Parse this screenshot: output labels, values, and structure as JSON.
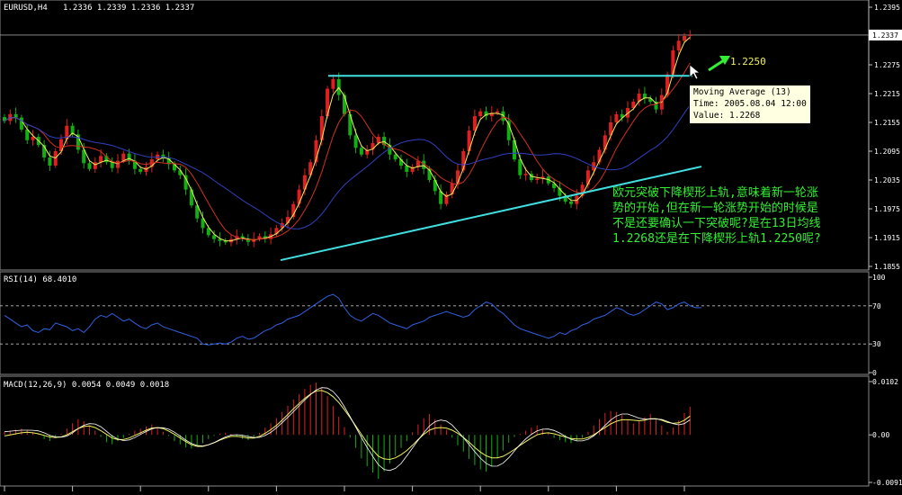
{
  "chart_data": [
    {
      "type": "candlestick",
      "title": "EURUSD,H4",
      "ohlc_header": "1.2336 1.2339 1.2336 1.2337",
      "ylim": [
        1.1855,
        1.2395
      ],
      "y_ticks": [
        "1.2395",
        "1.2337",
        "1.2275",
        "1.2215",
        "1.2155",
        "1.2095",
        "1.2035",
        "1.1975",
        "1.1915",
        "1.1855"
      ],
      "current_price": "1.2337",
      "overlays": [
        {
          "name": "MA fast",
          "color": "#f0f060"
        },
        {
          "name": "MA medium",
          "color": "#d03020"
        },
        {
          "name": "MA slow",
          "color": "#3040c0"
        }
      ],
      "resistance_line": {
        "price": 1.2252,
        "color": "#40e0e0"
      },
      "support_line": {
        "start_price": 1.1868,
        "end_price": 1.2063,
        "color": "#40e0e0"
      },
      "closes": [
        1.2158,
        1.2172,
        1.2165,
        1.214,
        1.2118,
        1.2125,
        1.2108,
        1.2082,
        1.2065,
        1.2095,
        1.212,
        1.2148,
        1.213,
        1.2098,
        1.207,
        1.2058,
        1.2072,
        1.2085,
        1.2072,
        1.206,
        1.2075,
        1.209,
        1.2075,
        1.2058,
        1.2052,
        1.2062,
        1.2078,
        1.2088,
        1.208,
        1.2068,
        1.2055,
        1.2045,
        1.2015,
        1.1982,
        1.1955,
        1.1935,
        1.192,
        1.1912,
        1.1908,
        1.1905,
        1.1912,
        1.1918,
        1.1912,
        1.1906,
        1.1912,
        1.1918,
        1.1912,
        1.1922,
        1.1935,
        1.1945,
        1.1958,
        1.1985,
        1.2015,
        1.2045,
        1.2072,
        1.2118,
        1.2168,
        1.2225,
        1.2245,
        1.2212,
        1.2172,
        1.2128,
        1.2102,
        1.2088,
        1.2098,
        1.2112,
        1.2125,
        1.2108,
        1.2088,
        1.2078,
        1.2065,
        1.2052,
        1.2062,
        1.2075,
        1.2058,
        1.2035,
        1.2012,
        1.1985,
        1.2005,
        1.2028,
        1.2055,
        1.2095,
        1.2138,
        1.2168,
        1.2178,
        1.2168,
        1.2175,
        1.2178,
        1.2158,
        1.2118,
        1.2078,
        1.2045,
        1.2048,
        1.2035,
        1.2038,
        1.2042,
        1.2028,
        1.2018,
        1.2002,
        1.199,
        1.1985,
        1.2002,
        1.2025,
        1.2055,
        1.2072,
        1.2098,
        1.2128,
        1.2155,
        1.2172,
        1.2165,
        1.2185,
        1.2198,
        1.2215,
        1.2205,
        1.2198,
        1.2182,
        1.2212,
        1.2255,
        1.2305,
        1.2325,
        1.2335,
        1.2337
      ]
    },
    {
      "type": "line",
      "title": "RSI(14) 68.4010",
      "ylim": [
        0,
        100
      ],
      "y_ticks": [
        "100",
        "70",
        "30",
        "0"
      ],
      "levels": [
        70,
        30
      ],
      "values": [
        60,
        56,
        52,
        48,
        50,
        44,
        42,
        46,
        45,
        52,
        50,
        48,
        44,
        46,
        42,
        48,
        56,
        60,
        58,
        62,
        58,
        54,
        56,
        52,
        48,
        46,
        50,
        52,
        48,
        46,
        44,
        42,
        40,
        38,
        36,
        30,
        29,
        30,
        31,
        30,
        32,
        36,
        38,
        35,
        36,
        40,
        44,
        46,
        50,
        52,
        56,
        58,
        60,
        64,
        68,
        72,
        76,
        80,
        82,
        78,
        68,
        60,
        56,
        54,
        58,
        62,
        60,
        56,
        52,
        50,
        48,
        46,
        50,
        52,
        54,
        58,
        60,
        62,
        64,
        62,
        60,
        58,
        60,
        66,
        70,
        74,
        72,
        66,
        62,
        56,
        50,
        46,
        44,
        42,
        40,
        38,
        36,
        38,
        42,
        40,
        44,
        46,
        50,
        52,
        56,
        58,
        60,
        64,
        68,
        66,
        62,
        60,
        62,
        66,
        70,
        74,
        72,
        66,
        68,
        72,
        74,
        70,
        68,
        68
      ]
    },
    {
      "type": "macd",
      "title": "MACD(12,26,9) 0.0054 0.0049 0.0018",
      "ylim": [
        -0.0091,
        0.0102
      ],
      "y_ticks": [
        "0.0102",
        "0.00",
        "-0.0091"
      ],
      "histogram": [
        0.0006,
        0.0008,
        0.001,
        0.0012,
        0.0009,
        0.0005,
        0.0002,
        -0.0008,
        -0.0012,
        -0.0006,
        0.0002,
        0.0012,
        0.0022,
        0.003,
        0.0026,
        0.0018,
        0.0008,
        -0.0004,
        -0.0014,
        -0.0018,
        -0.0012,
        -0.0006,
        0.0002,
        0.0008,
        0.0012,
        0.0016,
        0.002,
        0.0014,
        0.0006,
        -0.0002,
        -0.0012,
        -0.0018,
        -0.0024,
        -0.0026,
        -0.0022,
        -0.0016,
        -0.0008,
        -0.0002,
        0.0002,
        0.0004,
        0.0002,
        -0.0004,
        -0.0008,
        -0.001,
        -0.0006,
        0.0004,
        0.0014,
        0.0022,
        0.0032,
        0.0044,
        0.0056,
        0.0068,
        0.0078,
        0.0088,
        0.0096,
        0.01,
        0.009,
        0.0074,
        0.0055,
        0.0035,
        0.0015,
        -0.0005,
        -0.0025,
        -0.0045,
        -0.006,
        -0.0072,
        -0.0084,
        -0.007,
        -0.0055,
        -0.004,
        -0.0025,
        -0.0012,
        0.0005,
        0.002,
        0.0032,
        0.004,
        0.003,
        0.002,
        0.001,
        -0.0005,
        -0.002,
        -0.0032,
        -0.0046,
        -0.0058,
        -0.0066,
        -0.007,
        -0.006,
        -0.0045,
        -0.003,
        -0.0015,
        -0.0004,
        0.0002,
        0.0008,
        0.0014,
        0.0018,
        0.0012,
        0.0004,
        -0.0006,
        -0.001,
        -0.0014,
        -0.0016,
        -0.0012,
        -0.0006,
        0.0006,
        0.0018,
        0.003,
        0.0042,
        0.0046,
        0.0044,
        0.0038,
        0.003,
        0.0022,
        0.0026,
        0.0034,
        0.004,
        0.003,
        0.0018,
        0.0006,
        0.0014,
        0.0028,
        0.0042,
        0.0054
      ],
      "signal": [
        -0.0002,
        0,
        0.0002,
        0.0004,
        0.0005,
        0.0004,
        0.0002,
        -0.0001,
        -0.0004,
        -0.0005,
        -0.0004,
        0,
        0.0006,
        0.0012,
        0.0016,
        0.0017,
        0.0014,
        0.0008,
        0.0001,
        -0.0006,
        -0.0009,
        -0.0009,
        -0.0006,
        -0.0001,
        0.0004,
        0.0009,
        0.0013,
        0.0014,
        0.0012,
        0.0007,
        0.0001,
        -0.0006,
        -0.0013,
        -0.0019,
        -0.0022,
        -0.0022,
        -0.0019,
        -0.0015,
        -0.001,
        -0.0006,
        -0.0003,
        -0.0003,
        -0.0004,
        -0.0006,
        -0.0006,
        -0.0003,
        0.0003,
        0.001,
        0.0018,
        0.0028,
        0.0039,
        0.005,
        0.006,
        0.007,
        0.0078,
        0.0084,
        0.0085,
        0.0081,
        0.0073,
        0.0062,
        0.0048,
        0.0033,
        0.0017,
        0.0001,
        -0.0015,
        -0.0029,
        -0.0041,
        -0.0046,
        -0.0047,
        -0.0044,
        -0.0038,
        -0.003,
        -0.002,
        -0.0009,
        0.0001,
        0.0009,
        0.0013,
        0.0014,
        0.0013,
        0.0009,
        0.0003,
        -0.0005,
        -0.0014,
        -0.0024,
        -0.0033,
        -0.004,
        -0.0044,
        -0.0044,
        -0.0041,
        -0.0035,
        -0.0028,
        -0.002,
        -0.0013,
        -0.0006,
        0,
        0.0003,
        0.0004,
        0.0002,
        -0.0001,
        -0.0004,
        -0.0007,
        -0.0008,
        -0.0008,
        -0.0005,
        0,
        0.0007,
        0.0014,
        0.0021,
        0.0026,
        0.0029,
        0.0029,
        0.0028,
        0.0027,
        0.0028,
        0.0031,
        0.0031,
        0.0028,
        0.0024,
        0.0022,
        0.0023,
        0.0028,
        0.0036
      ],
      "colors": {
        "positive": "#e02020",
        "negative": "#10b010",
        "signal": "#f0f060",
        "macd_line": "#ffffff"
      }
    }
  ],
  "annotations": {
    "target_label": "1.2250",
    "comment_lines": [
      "欧元突破下降楔形上轨,意味着新一轮涨",
      "势的开始,但在新一轮涨势开始的时候是",
      "不是还要确认一下突破呢?是在13日均线",
      "1.2268还是在下降楔形上轨1.2250呢?"
    ]
  },
  "tooltip": {
    "line1": "Moving Average (13)",
    "line2": "Time: 2005.08.04 12:00",
    "line3": "Value: 1.2268"
  },
  "colors": {
    "background": "#000000",
    "grid": "#333333",
    "axis": "#c0c0c0",
    "bull": "#e02020",
    "bear": "#10b010",
    "rsi": "#3060e0",
    "trendline": "#40e0e0",
    "comment": "#33ee33"
  }
}
